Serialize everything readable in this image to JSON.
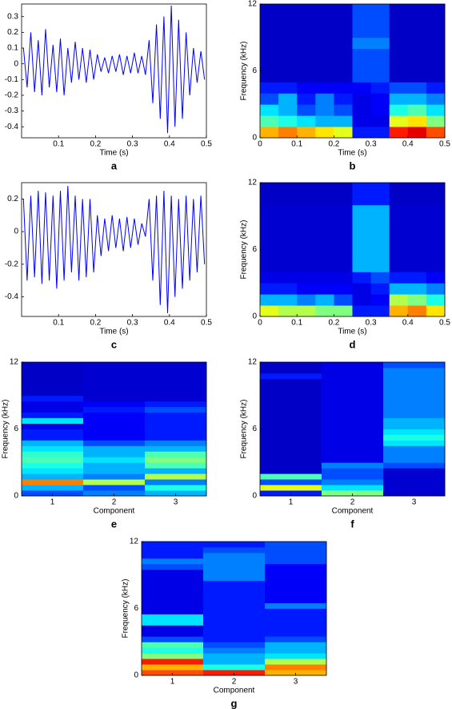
{
  "chart_data": [
    {
      "type": "line",
      "panel_label": "a",
      "xlabel": "Time (s)",
      "color": "#0000ff",
      "xlim": [
        0,
        0.5
      ],
      "ylim": [
        -0.47,
        0.38
      ],
      "xticks": [
        0.1,
        0.2,
        0.3,
        0.4,
        0.5
      ],
      "yticks": [
        -0.4,
        -0.3,
        -0.2,
        -0.1,
        0,
        0.1,
        0.2,
        0.3
      ],
      "x": [
        0.005,
        0.015,
        0.025,
        0.035,
        0.045,
        0.055,
        0.065,
        0.075,
        0.085,
        0.095,
        0.105,
        0.115,
        0.125,
        0.135,
        0.145,
        0.155,
        0.165,
        0.175,
        0.185,
        0.195,
        0.205,
        0.215,
        0.225,
        0.235,
        0.245,
        0.255,
        0.265,
        0.275,
        0.285,
        0.295,
        0.305,
        0.315,
        0.325,
        0.335,
        0.345,
        0.355,
        0.365,
        0.375,
        0.385,
        0.395,
        0.405,
        0.415,
        0.425,
        0.435,
        0.445,
        0.455,
        0.465,
        0.475,
        0.485,
        0.495
      ],
      "values": [
        0.1,
        -0.15,
        0.2,
        -0.18,
        0.15,
        -0.2,
        0.22,
        -0.15,
        0.12,
        -0.18,
        0.16,
        -0.2,
        0.1,
        -0.12,
        0.14,
        -0.1,
        0.1,
        -0.12,
        0.09,
        -0.1,
        0.06,
        -0.05,
        0.04,
        -0.06,
        0.05,
        -0.05,
        0.06,
        -0.07,
        0.05,
        -0.06,
        0.07,
        -0.06,
        0.05,
        -0.07,
        0.15,
        -0.25,
        0.25,
        -0.35,
        0.3,
        -0.44,
        0.37,
        -0.4,
        0.28,
        -0.35,
        0.2,
        -0.2,
        0.1,
        -0.12,
        0.08,
        -0.1
      ]
    },
    {
      "type": "heatmap",
      "panel_label": "b",
      "xlabel": "Time (s)",
      "ylabel": "Frequency (kHz)",
      "colormap": "jet",
      "zlim": [
        0,
        1
      ],
      "xlim": [
        0,
        0.5
      ],
      "ylim": [
        0,
        12
      ],
      "xticks": [
        0,
        0.1,
        0.2,
        0.3,
        0.4,
        0.5
      ],
      "yticks": [
        0,
        6,
        12
      ],
      "z": [
        [
          0.7,
          0.75,
          0.7,
          0.65,
          0.6,
          0.15,
          0.15,
          0.85,
          0.9,
          0.8
        ],
        [
          0.45,
          0.4,
          0.35,
          0.3,
          0.3,
          0.1,
          0.1,
          0.6,
          0.65,
          0.5
        ],
        [
          0.35,
          0.3,
          0.2,
          0.25,
          0.2,
          0.1,
          0.12,
          0.4,
          0.45,
          0.35
        ],
        [
          0.2,
          0.3,
          0.15,
          0.25,
          0.15,
          0.1,
          0.12,
          0.3,
          0.3,
          0.25
        ],
        [
          0.15,
          0.15,
          0.12,
          0.12,
          0.12,
          0.12,
          0.15,
          0.2,
          0.2,
          0.15
        ],
        [
          0.07,
          0.07,
          0.07,
          0.07,
          0.07,
          0.2,
          0.2,
          0.07,
          0.07,
          0.07
        ],
        [
          0.07,
          0.07,
          0.07,
          0.07,
          0.07,
          0.2,
          0.2,
          0.07,
          0.07,
          0.07
        ],
        [
          0.07,
          0.07,
          0.07,
          0.07,
          0.07,
          0.2,
          0.2,
          0.07,
          0.07,
          0.07
        ],
        [
          0.07,
          0.07,
          0.07,
          0.07,
          0.07,
          0.25,
          0.25,
          0.07,
          0.07,
          0.07
        ],
        [
          0.07,
          0.07,
          0.07,
          0.07,
          0.07,
          0.2,
          0.2,
          0.07,
          0.07,
          0.07
        ],
        [
          0.07,
          0.07,
          0.07,
          0.07,
          0.07,
          0.2,
          0.2,
          0.07,
          0.07,
          0.07
        ],
        [
          0.07,
          0.07,
          0.07,
          0.07,
          0.07,
          0.2,
          0.2,
          0.07,
          0.07,
          0.07
        ]
      ]
    },
    {
      "type": "line",
      "panel_label": "c",
      "xlabel": "Time (s)",
      "color": "#0000ff",
      "xlim": [
        0,
        0.5
      ],
      "ylim": [
        -0.52,
        0.3
      ],
      "xticks": [
        0.1,
        0.2,
        0.3,
        0.4,
        0.5
      ],
      "yticks": [
        -0.4,
        -0.2,
        0,
        0.2
      ],
      "x": [
        0.005,
        0.015,
        0.025,
        0.035,
        0.045,
        0.055,
        0.065,
        0.075,
        0.085,
        0.095,
        0.105,
        0.115,
        0.125,
        0.135,
        0.145,
        0.155,
        0.165,
        0.175,
        0.185,
        0.195,
        0.205,
        0.215,
        0.225,
        0.235,
        0.245,
        0.255,
        0.265,
        0.275,
        0.285,
        0.295,
        0.305,
        0.315,
        0.325,
        0.335,
        0.345,
        0.355,
        0.365,
        0.375,
        0.385,
        0.395,
        0.405,
        0.415,
        0.425,
        0.435,
        0.445,
        0.455,
        0.465,
        0.475,
        0.485,
        0.495
      ],
      "values": [
        0.2,
        -0.3,
        0.22,
        -0.28,
        0.25,
        -0.32,
        0.24,
        -0.3,
        0.22,
        -0.35,
        0.25,
        -0.3,
        0.28,
        -0.25,
        0.22,
        -0.3,
        0.2,
        -0.28,
        0.2,
        -0.25,
        0.1,
        -0.15,
        0.08,
        -0.12,
        0.1,
        -0.1,
        0.08,
        -0.12,
        0.09,
        -0.1,
        0.08,
        -0.08,
        0.05,
        -0.03,
        0.2,
        -0.3,
        0.22,
        -0.45,
        0.25,
        -0.5,
        0.22,
        -0.4,
        0.2,
        -0.35,
        0.22,
        -0.3,
        0.2,
        -0.25,
        0.22,
        -0.2
      ]
    },
    {
      "type": "heatmap",
      "panel_label": "d",
      "xlabel": "Time (s)",
      "ylabel": "Frequency (kHz)",
      "colormap": "jet",
      "zlim": [
        0,
        1
      ],
      "xlim": [
        0,
        0.5
      ],
      "ylim": [
        0,
        12
      ],
      "xticks": [
        0,
        0.1,
        0.2,
        0.3,
        0.4,
        0.5
      ],
      "yticks": [
        0,
        6,
        12
      ],
      "z": [
        [
          0.6,
          0.55,
          0.55,
          0.5,
          0.5,
          0.15,
          0.15,
          0.7,
          0.75,
          0.65
        ],
        [
          0.3,
          0.3,
          0.25,
          0.3,
          0.2,
          0.1,
          0.12,
          0.55,
          0.5,
          0.4
        ],
        [
          0.15,
          0.15,
          0.12,
          0.12,
          0.12,
          0.1,
          0.15,
          0.3,
          0.3,
          0.25
        ],
        [
          0.1,
          0.1,
          0.1,
          0.1,
          0.1,
          0.15,
          0.2,
          0.15,
          0.15,
          0.12
        ],
        [
          0.08,
          0.08,
          0.08,
          0.08,
          0.08,
          0.3,
          0.3,
          0.08,
          0.08,
          0.08
        ],
        [
          0.08,
          0.08,
          0.08,
          0.08,
          0.08,
          0.3,
          0.3,
          0.08,
          0.08,
          0.08
        ],
        [
          0.08,
          0.08,
          0.08,
          0.08,
          0.08,
          0.3,
          0.3,
          0.08,
          0.08,
          0.08
        ],
        [
          0.08,
          0.08,
          0.08,
          0.08,
          0.08,
          0.3,
          0.3,
          0.08,
          0.08,
          0.08
        ],
        [
          0.08,
          0.08,
          0.08,
          0.08,
          0.08,
          0.3,
          0.3,
          0.08,
          0.08,
          0.08
        ],
        [
          0.08,
          0.08,
          0.08,
          0.08,
          0.08,
          0.3,
          0.3,
          0.08,
          0.08,
          0.08
        ],
        [
          0.07,
          0.07,
          0.07,
          0.07,
          0.07,
          0.15,
          0.15,
          0.07,
          0.07,
          0.07
        ],
        [
          0.07,
          0.07,
          0.07,
          0.07,
          0.07,
          0.15,
          0.15,
          0.07,
          0.07,
          0.07
        ]
      ]
    },
    {
      "type": "heatmap",
      "panel_label": "e",
      "xlabel": "Component",
      "ylabel": "Frequency (kHz)",
      "colormap": "jet",
      "zlim": [
        0,
        1
      ],
      "xlim": [
        0.5,
        3.5
      ],
      "ylim": [
        0,
        12
      ],
      "xticks": [
        1,
        2,
        3
      ],
      "yticks": [
        0,
        6,
        12
      ],
      "z": [
        [
          0.2,
          0.25,
          0.3
        ],
        [
          0.3,
          0.2,
          0.4
        ],
        [
          0.75,
          0.55,
          0.25
        ],
        [
          0.3,
          0.25,
          0.55
        ],
        [
          0.35,
          0.3,
          0.3
        ],
        [
          0.4,
          0.3,
          0.45
        ],
        [
          0.45,
          0.35,
          0.5
        ],
        [
          0.42,
          0.3,
          0.45
        ],
        [
          0.35,
          0.3,
          0.3
        ],
        [
          0.3,
          0.2,
          0.25
        ],
        [
          0.15,
          0.12,
          0.15
        ],
        [
          0.15,
          0.12,
          0.15
        ],
        [
          0.1,
          0.12,
          0.15
        ],
        [
          0.35,
          0.12,
          0.15
        ],
        [
          0.15,
          0.12,
          0.15
        ],
        [
          0.1,
          0.15,
          0.2
        ],
        [
          0.1,
          0.12,
          0.15
        ],
        [
          0.15,
          0.08,
          0.08
        ],
        [
          0.07,
          0.08,
          0.08
        ],
        [
          0.07,
          0.08,
          0.08
        ],
        [
          0.07,
          0.08,
          0.08
        ],
        [
          0.07,
          0.08,
          0.08
        ],
        [
          0.07,
          0.08,
          0.08
        ],
        [
          0.07,
          0.08,
          0.08
        ]
      ]
    },
    {
      "type": "heatmap",
      "panel_label": "f",
      "xlabel": "Component",
      "ylabel": "Frequency (kHz)",
      "colormap": "jet",
      "zlim": [
        0,
        1
      ],
      "xlim": [
        0.5,
        3.5
      ],
      "ylim": [
        0,
        12
      ],
      "xticks": [
        1,
        2,
        3
      ],
      "yticks": [
        0,
        6,
        12
      ],
      "z": [
        [
          0.15,
          0.5,
          0.08
        ],
        [
          0.6,
          0.35,
          0.08
        ],
        [
          0.2,
          0.25,
          0.08
        ],
        [
          0.45,
          0.2,
          0.08
        ],
        [
          0.07,
          0.2,
          0.08
        ],
        [
          0.07,
          0.25,
          0.2
        ],
        [
          0.07,
          0.1,
          0.25
        ],
        [
          0.07,
          0.1,
          0.25
        ],
        [
          0.07,
          0.1,
          0.25
        ],
        [
          0.07,
          0.1,
          0.35
        ],
        [
          0.07,
          0.1,
          0.4
        ],
        [
          0.07,
          0.1,
          0.35
        ],
        [
          0.07,
          0.1,
          0.3
        ],
        [
          0.07,
          0.1,
          0.3
        ],
        [
          0.07,
          0.1,
          0.25
        ],
        [
          0.07,
          0.1,
          0.25
        ],
        [
          0.07,
          0.1,
          0.25
        ],
        [
          0.07,
          0.1,
          0.25
        ],
        [
          0.07,
          0.1,
          0.25
        ],
        [
          0.07,
          0.1,
          0.25
        ],
        [
          0.07,
          0.1,
          0.25
        ],
        [
          0.15,
          0.1,
          0.25
        ],
        [
          0.07,
          0.1,
          0.25
        ],
        [
          0.07,
          0.1,
          0.2
        ]
      ]
    },
    {
      "type": "heatmap",
      "panel_label": "g",
      "xlabel": "Component",
      "ylabel": "Frequency (kHz)",
      "colormap": "jet",
      "zlim": [
        0,
        1
      ],
      "xlim": [
        0.5,
        3.5
      ],
      "ylim": [
        0,
        12
      ],
      "xticks": [
        1,
        2,
        3
      ],
      "yticks": [
        0,
        6,
        12
      ],
      "z": [
        [
          0.8,
          0.85,
          0.7
        ],
        [
          0.7,
          0.4,
          0.75
        ],
        [
          0.85,
          0.3,
          0.55
        ],
        [
          0.5,
          0.3,
          0.35
        ],
        [
          0.4,
          0.25,
          0.3
        ],
        [
          0.45,
          0.2,
          0.3
        ],
        [
          0.2,
          0.15,
          0.2
        ],
        [
          0.1,
          0.15,
          0.15
        ],
        [
          0.1,
          0.15,
          0.15
        ],
        [
          0.35,
          0.15,
          0.15
        ],
        [
          0.35,
          0.15,
          0.15
        ],
        [
          0.1,
          0.15,
          0.15
        ],
        [
          0.1,
          0.15,
          0.25
        ],
        [
          0.1,
          0.15,
          0.12
        ],
        [
          0.1,
          0.15,
          0.12
        ],
        [
          0.1,
          0.15,
          0.12
        ],
        [
          0.1,
          0.15,
          0.12
        ],
        [
          0.1,
          0.25,
          0.12
        ],
        [
          0.1,
          0.25,
          0.12
        ],
        [
          0.2,
          0.25,
          0.12
        ],
        [
          0.25,
          0.25,
          0.2
        ],
        [
          0.15,
          0.25,
          0.2
        ],
        [
          0.15,
          0.2,
          0.2
        ],
        [
          0.15,
          0.15,
          0.2
        ]
      ]
    }
  ]
}
